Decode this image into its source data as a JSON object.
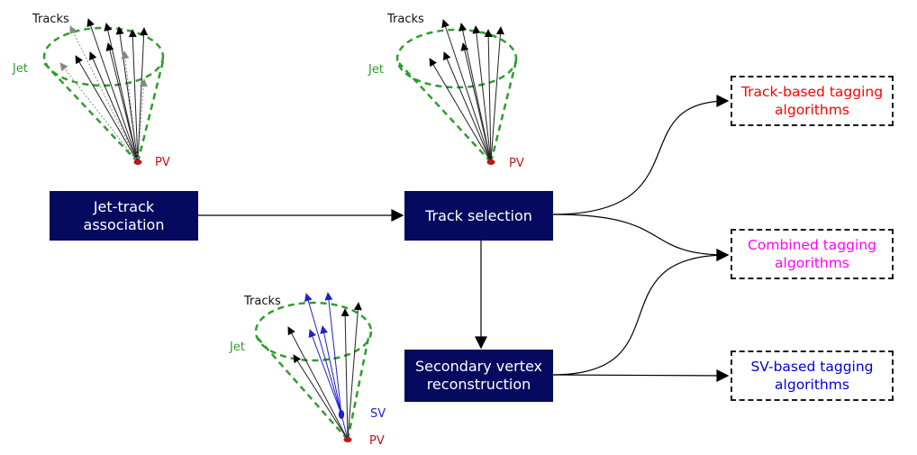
{
  "colors": {
    "process_box_fill": "#050a5f",
    "process_box_text": "#ffffff",
    "track_based": "#ff0000",
    "combined": "#ff00ff",
    "sv_based": "#0000dd",
    "jet": "#2e9e2e",
    "pv": "#c01515",
    "sv": "#2020cc",
    "tracks": "#111111"
  },
  "process_boxes": {
    "jet_track": "Jet-track association",
    "track_selection": "Track selection",
    "secondary_vertex": "Secondary vertex reconstruction"
  },
  "output_boxes": {
    "track_based": "Track-based tagging algorithms",
    "combined": "Combined tagging algorithms",
    "sv_based": "SV-based tagging algorithms"
  },
  "cone_labels": {
    "tracks": "Tracks",
    "jet": "Jet",
    "pv": "PV",
    "sv": "SV"
  }
}
